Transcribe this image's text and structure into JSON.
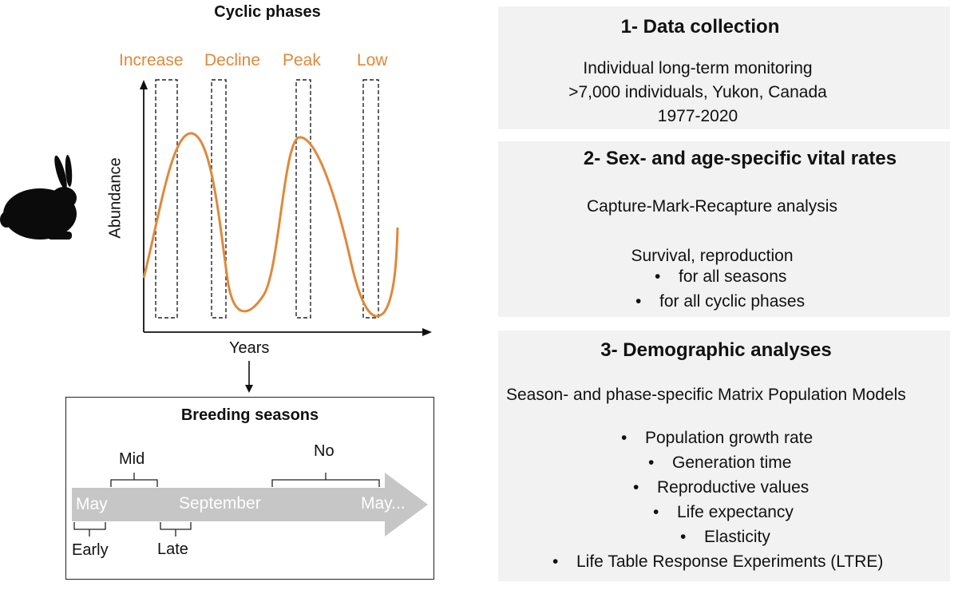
{
  "left": {
    "cyclic_title": "Cyclic phases",
    "phases": [
      "Increase",
      "Decline",
      "Peak",
      "Low"
    ],
    "y_axis_label": "Abundance",
    "x_axis_label": "Years",
    "hare_icon": "hare-silhouette-icon",
    "accent_color": "#E0883A",
    "breeding": {
      "title": "Breeding seasons",
      "timeline": [
        "May",
        "September",
        "May..."
      ],
      "brackets": [
        "Mid",
        "No",
        "Early",
        "Late"
      ],
      "arrow_color": "#c6c6c6"
    }
  },
  "panels": [
    {
      "title": "1- Data collection",
      "lines": [
        "Individual long-term monitoring",
        ">7,000 individuals, Yukon, Canada",
        "1977-2020"
      ]
    },
    {
      "title": "2- Sex- and age-specific vital rates",
      "lines": [
        "Capture-Mark-Recapture analysis",
        "Survival, reproduction"
      ],
      "bullets": [
        "for all seasons",
        "for all cyclic phases"
      ]
    },
    {
      "title": "3- Demographic analyses",
      "lines": [
        "Season- and phase-specific Matrix Population Models"
      ],
      "bullets": [
        "Population growth rate",
        "Generation time",
        "Reproductive values",
        "Life expectancy",
        "Elasticity",
        "Life Table Response Experiments (LTRE)"
      ]
    }
  ],
  "bullet_char": "•"
}
